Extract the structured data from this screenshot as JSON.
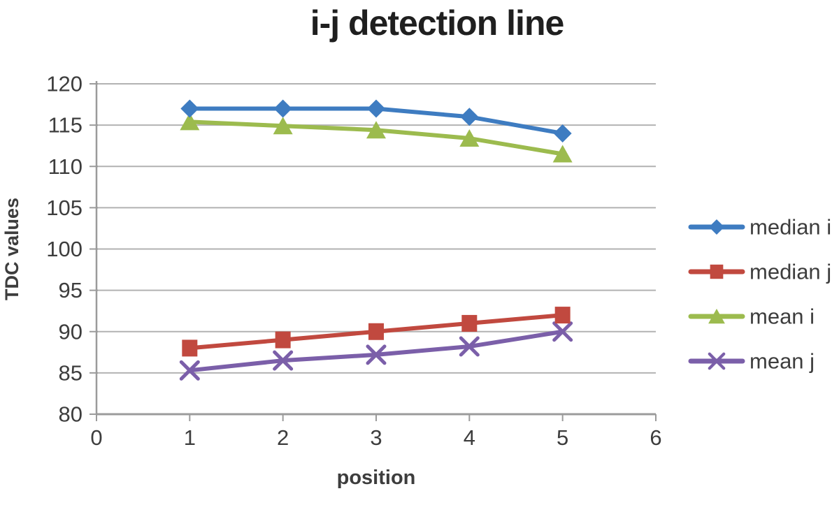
{
  "chart_data": {
    "type": "line",
    "title": "i-j detection line",
    "xlabel": "position",
    "ylabel": "TDC values",
    "x": [
      1,
      2,
      3,
      4,
      5
    ],
    "xlim": [
      0,
      6
    ],
    "ylim": [
      80,
      120
    ],
    "xticks": [
      0,
      1,
      2,
      3,
      4,
      5,
      6
    ],
    "yticks": [
      80,
      85,
      90,
      95,
      100,
      105,
      110,
      115,
      120
    ],
    "grid": "horizontal",
    "legend_position": "right",
    "series": [
      {
        "name": "median i",
        "marker": "diamond",
        "color": "#3E7CC1",
        "values": [
          117,
          117,
          117,
          116,
          114
        ]
      },
      {
        "name": "median j",
        "marker": "square",
        "color": "#C1493F",
        "values": [
          88,
          89,
          90,
          91,
          92
        ]
      },
      {
        "name": "mean i",
        "marker": "triangle",
        "color": "#9CBB4E",
        "values": [
          115.4,
          114.9,
          114.4,
          113.4,
          111.5
        ]
      },
      {
        "name": "mean j",
        "marker": "x",
        "color": "#7B5FA9",
        "values": [
          85.3,
          86.5,
          87.2,
          88.2,
          90
        ]
      }
    ]
  },
  "colors": {
    "grid": "#B2B2B2",
    "axis": "#9B9B9B",
    "tick_text": "#3D3D3D",
    "title_text": "#1F1F1F",
    "background": "#FFFFFF"
  }
}
